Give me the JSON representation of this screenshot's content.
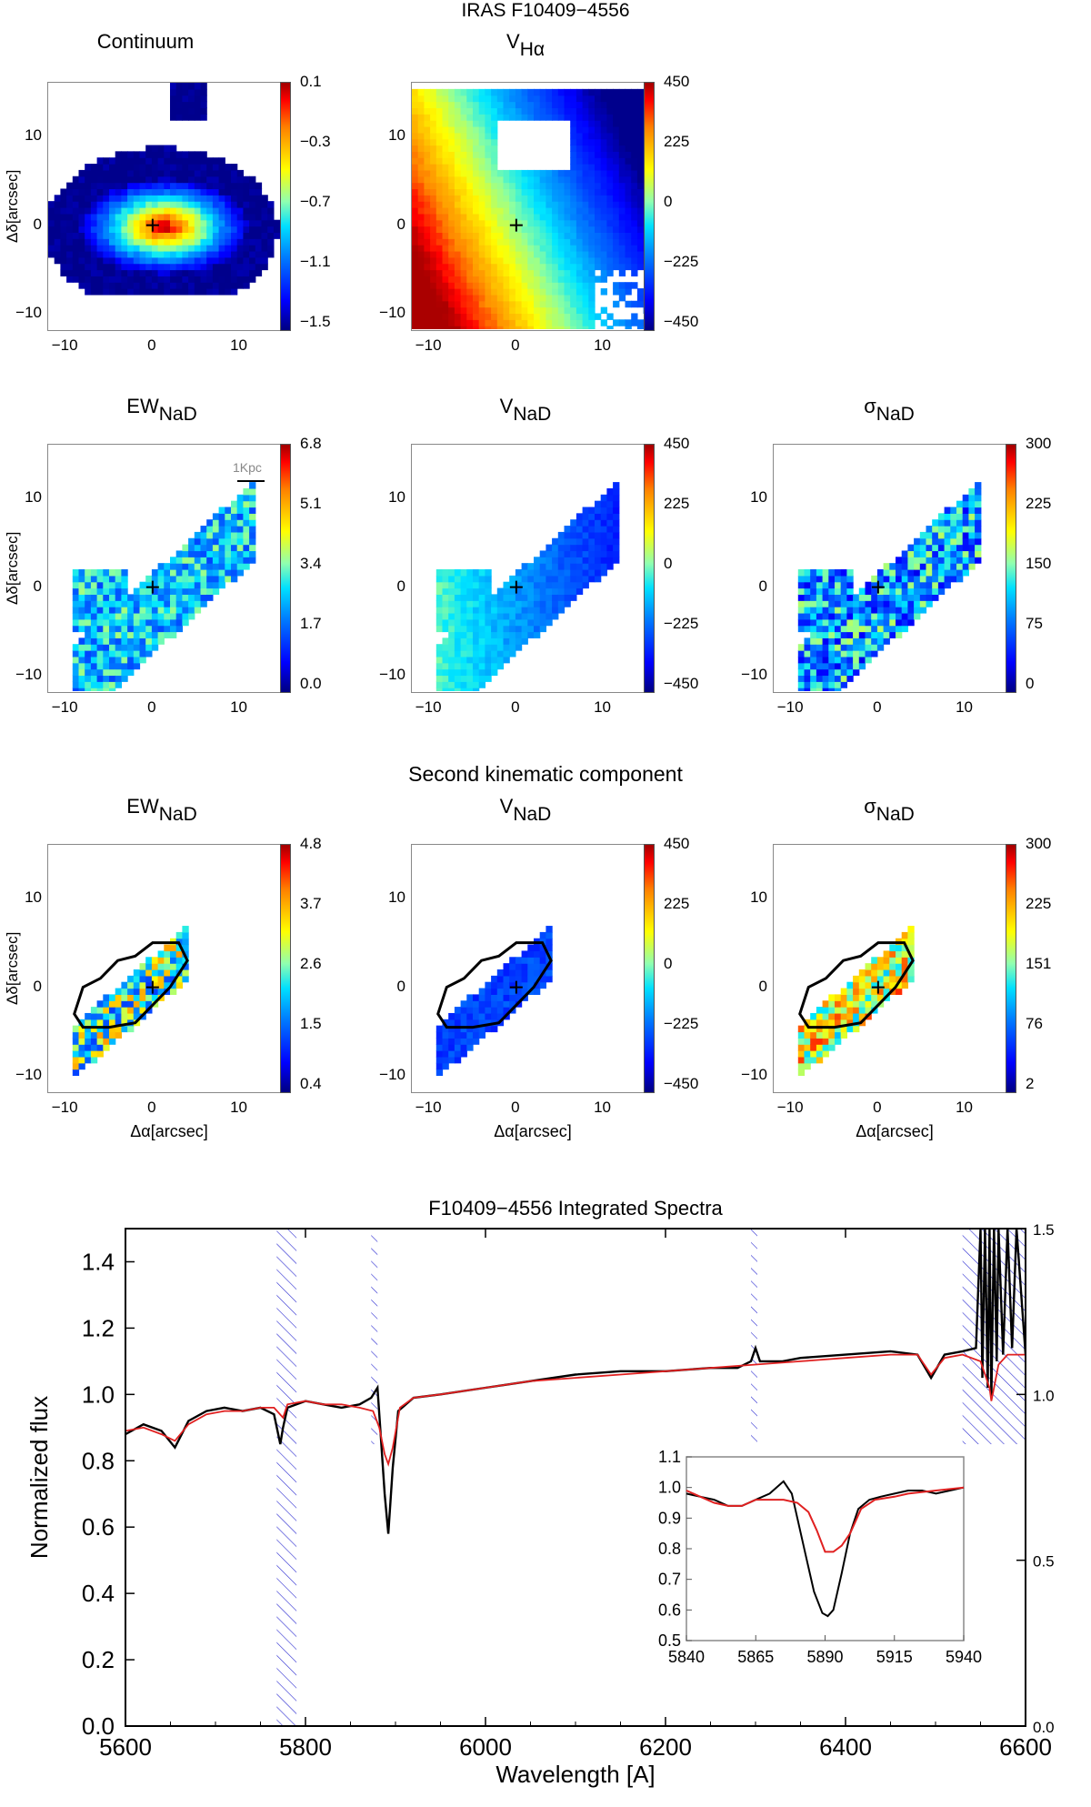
{
  "main_title": "IRAS F10409−4556",
  "section_title": "Second kinematic component",
  "axes": {
    "dec_label": "Δδ[arcsec]",
    "ra_label": "Δα[arcsec]"
  },
  "scalebar_label": "1Kpc",
  "panels": [
    {
      "id": "continuum",
      "title": "Continuum",
      "title_main": "Continuum",
      "title_sub": "",
      "cbar": [
        "0.1",
        "−0.3",
        "−0.7",
        "−1.1",
        "−1.5"
      ],
      "xticks": [
        "−10",
        "0",
        "10"
      ],
      "yticks": [
        "10",
        "0",
        "−10"
      ]
    },
    {
      "id": "vha",
      "title_main": "V",
      "title_sub": "Hα",
      "cbar": [
        "450",
        "225",
        "0",
        "−225",
        "−450"
      ],
      "xticks": [
        "−10",
        "0",
        "10"
      ],
      "yticks": [
        "10",
        "0",
        "−10"
      ]
    },
    {
      "id": "ewnad1",
      "title_main": "EW",
      "title_sub": "NaD",
      "cbar": [
        "6.8",
        "5.1",
        "3.4",
        "1.7",
        "0.0"
      ],
      "xticks": [
        "−10",
        "0",
        "10"
      ],
      "yticks": [
        "10",
        "0",
        "−10"
      ]
    },
    {
      "id": "vnad1",
      "title_main": "V",
      "title_sub": "NaD",
      "cbar": [
        "450",
        "225",
        "0",
        "−225",
        "−450"
      ],
      "xticks": [
        "−10",
        "0",
        "10"
      ],
      "yticks": [
        "10",
        "0",
        "−10"
      ]
    },
    {
      "id": "signad1",
      "title_main": "σ",
      "title_sub": "NaD",
      "cbar": [
        "300",
        "225",
        "150",
        "75",
        "0"
      ],
      "xticks": [
        "−10",
        "0",
        "10"
      ],
      "yticks": [
        "10",
        "0",
        "−10"
      ]
    },
    {
      "id": "ewnad2",
      "title_main": "EW",
      "title_sub": "NaD",
      "cbar": [
        "4.8",
        "3.7",
        "2.6",
        "1.5",
        "0.4"
      ],
      "xticks": [
        "−10",
        "0",
        "10"
      ],
      "yticks": [
        "10",
        "0",
        "−10"
      ]
    },
    {
      "id": "vnad2",
      "title_main": "V",
      "title_sub": "NaD",
      "cbar": [
        "450",
        "225",
        "0",
        "−225",
        "−450"
      ],
      "xticks": [
        "−10",
        "0",
        "10"
      ],
      "yticks": [
        "10",
        "0",
        "−10"
      ]
    },
    {
      "id": "signad2",
      "title_main": "σ",
      "title_sub": "NaD",
      "cbar": [
        "300",
        "225",
        "151",
        "76",
        "2"
      ],
      "xticks": [
        "−10",
        "0",
        "10"
      ],
      "yticks": [
        "10",
        "0",
        "−10"
      ]
    }
  ],
  "colors": {
    "observed": "#000000",
    "model": "#e02020",
    "masked": "#2a2ad0",
    "map_low": "#0000ff",
    "map_high": "#ff0000"
  },
  "chart_data": {
    "type": "line",
    "title": "F10409−4556 Integrated Spectra",
    "xlabel": "Wavelength [A]",
    "ylabel": "Normalized flux",
    "xlim": [
      5600,
      6600
    ],
    "ylim": [
      0.0,
      1.5
    ],
    "xticks": [
      "5600",
      "5800",
      "6000",
      "6200",
      "6400",
      "6600"
    ],
    "yticks": [
      "0.0",
      "0.2",
      "0.4",
      "0.6",
      "0.8",
      "1.0",
      "1.2",
      "1.4"
    ],
    "right_yticks": [
      "1.5",
      "1.0",
      "0.5",
      "0.0"
    ],
    "masked_regions": [
      [
        5768,
        5790
      ],
      [
        5873,
        5880
      ],
      [
        6295,
        6302
      ],
      [
        6530,
        6600
      ]
    ],
    "series": [
      {
        "name": "Observed",
        "color": "#000000",
        "x": [
          5600,
          5620,
          5640,
          5655,
          5670,
          5690,
          5710,
          5730,
          5750,
          5765,
          5772,
          5775,
          5780,
          5800,
          5820,
          5840,
          5860,
          5873,
          5880,
          5883,
          5888,
          5892,
          5897,
          5903,
          5920,
          5950,
          6000,
          6050,
          6100,
          6150,
          6200,
          6250,
          6280,
          6295,
          6300,
          6305,
          6330,
          6350,
          6400,
          6450,
          6480,
          6495,
          6510,
          6530,
          6545,
          6550,
          6552,
          6555,
          6558,
          6560,
          6562,
          6565,
          6568,
          6570,
          6575,
          6580,
          6585,
          6590,
          6600
        ],
        "y": [
          0.88,
          0.91,
          0.89,
          0.84,
          0.92,
          0.95,
          0.96,
          0.95,
          0.96,
          0.94,
          0.85,
          0.9,
          0.96,
          0.98,
          0.97,
          0.96,
          0.97,
          0.99,
          1.02,
          0.9,
          0.7,
          0.58,
          0.78,
          0.95,
          0.99,
          1.0,
          1.02,
          1.04,
          1.06,
          1.07,
          1.07,
          1.08,
          1.08,
          1.1,
          1.14,
          1.1,
          1.1,
          1.11,
          1.12,
          1.13,
          1.12,
          1.05,
          1.12,
          1.13,
          1.14,
          1.5,
          1.05,
          1.5,
          1.02,
          1.5,
          0.99,
          1.5,
          1.1,
          1.5,
          1.12,
          1.5,
          1.14,
          1.5,
          1.12
        ]
      },
      {
        "name": "Model",
        "color": "#e02020",
        "x": [
          5600,
          5620,
          5640,
          5655,
          5670,
          5690,
          5710,
          5730,
          5750,
          5765,
          5775,
          5780,
          5800,
          5820,
          5840,
          5860,
          5875,
          5882,
          5888,
          5892,
          5897,
          5905,
          5920,
          5950,
          6000,
          6050,
          6100,
          6150,
          6200,
          6250,
          6300,
          6350,
          6400,
          6450,
          6480,
          6495,
          6510,
          6530,
          6550,
          6560,
          6562,
          6565,
          6570,
          6580,
          6600
        ],
        "y": [
          0.89,
          0.9,
          0.88,
          0.86,
          0.91,
          0.94,
          0.95,
          0.95,
          0.96,
          0.96,
          0.93,
          0.97,
          0.98,
          0.97,
          0.97,
          0.96,
          0.95,
          0.9,
          0.82,
          0.79,
          0.84,
          0.96,
          0.99,
          1.0,
          1.02,
          1.04,
          1.05,
          1.06,
          1.07,
          1.08,
          1.09,
          1.1,
          1.11,
          1.12,
          1.12,
          1.06,
          1.11,
          1.12,
          1.1,
          1.02,
          0.98,
          1.02,
          1.09,
          1.12,
          1.12
        ]
      }
    ],
    "inset": {
      "xlim": [
        5840,
        5940
      ],
      "ylim": [
        0.5,
        1.1
      ],
      "xticks": [
        "5840",
        "5865",
        "5890",
        "5915",
        "5940"
      ],
      "yticks": [
        "1.1",
        "1.0",
        "0.9",
        "0.8",
        "0.7",
        "0.6",
        "0.5"
      ],
      "series": [
        {
          "name": "Observed",
          "color": "#000000",
          "x": [
            5840,
            5845,
            5850,
            5855,
            5860,
            5865,
            5870,
            5875,
            5878,
            5880,
            5883,
            5886,
            5889,
            5891,
            5893,
            5896,
            5899,
            5902,
            5906,
            5910,
            5915,
            5920,
            5925,
            5930,
            5935,
            5940
          ],
          "y": [
            0.98,
            0.97,
            0.96,
            0.94,
            0.94,
            0.96,
            0.98,
            1.02,
            0.98,
            0.9,
            0.78,
            0.66,
            0.59,
            0.58,
            0.6,
            0.72,
            0.85,
            0.93,
            0.96,
            0.97,
            0.98,
            0.99,
            0.99,
            0.98,
            0.99,
            1.0
          ]
        },
        {
          "name": "Model",
          "color": "#e02020",
          "x": [
            5840,
            5845,
            5850,
            5855,
            5860,
            5865,
            5870,
            5875,
            5880,
            5884,
            5887,
            5890,
            5893,
            5896,
            5899,
            5903,
            5908,
            5915,
            5920,
            5930,
            5940
          ],
          "y": [
            0.99,
            0.97,
            0.95,
            0.94,
            0.94,
            0.96,
            0.96,
            0.96,
            0.95,
            0.92,
            0.86,
            0.79,
            0.79,
            0.81,
            0.85,
            0.93,
            0.96,
            0.97,
            0.98,
            0.99,
            1.0
          ]
        }
      ]
    }
  }
}
